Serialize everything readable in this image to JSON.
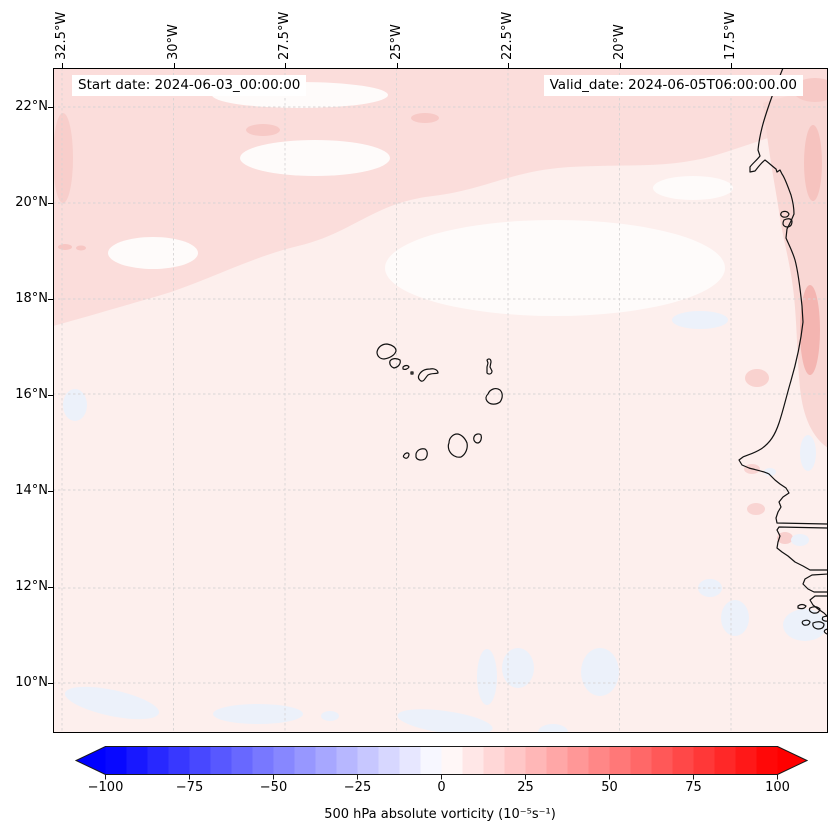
{
  "figure": {
    "map": {
      "start_date_label": "Start date: 2024-06-03_00:00:00",
      "valid_date_label": "Valid_date: 2024-06-05T06:00:00.00"
    },
    "axes": {
      "lon_ticks": [
        {
          "label": "32.5°W",
          "deg_w": 32.5
        },
        {
          "label": "30°W",
          "deg_w": 30
        },
        {
          "label": "27.5°W",
          "deg_w": 27.5
        },
        {
          "label": "25°W",
          "deg_w": 25
        },
        {
          "label": "22.5°W",
          "deg_w": 22.5
        },
        {
          "label": "20°W",
          "deg_w": 20
        },
        {
          "label": "17.5°W",
          "deg_w": 17.5
        }
      ],
      "lat_ticks": [
        {
          "label": "22°N",
          "deg_n": 22
        },
        {
          "label": "20°N",
          "deg_n": 20
        },
        {
          "label": "18°N",
          "deg_n": 18
        },
        {
          "label": "16°N",
          "deg_n": 16
        },
        {
          "label": "14°N",
          "deg_n": 14
        },
        {
          "label": "12°N",
          "deg_n": 12
        },
        {
          "label": "10°N",
          "deg_n": 10
        }
      ]
    },
    "colorbar": {
      "label": "500 hPa absolute vorticity (10⁻⁵s⁻¹)",
      "vmin": -100,
      "vmax": 100,
      "segments": 32,
      "under_color": "#0000ff",
      "over_color": "#ff0000",
      "ticks": [
        {
          "value": -100,
          "label": "−100"
        },
        {
          "value": -75,
          "label": "−75"
        },
        {
          "value": -50,
          "label": "−50"
        },
        {
          "value": -25,
          "label": "−25"
        },
        {
          "value": 0,
          "label": "0"
        },
        {
          "value": 25,
          "label": "25"
        },
        {
          "value": 50,
          "label": "50"
        },
        {
          "value": 75,
          "label": "75"
        },
        {
          "value": 100,
          "label": "100"
        }
      ]
    }
  },
  "chart_data": {
    "type": "heatmap",
    "variable": "500 hPa absolute vorticity",
    "units": "10⁻⁵ s⁻¹",
    "start_date": "2024-06-03_00:00:00",
    "valid_date": "2024-06-05T06:00:00.00",
    "colormap": "bwr (blue–white–red), 32 discrete filled-contour levels, colorbar extended with arrows on both ends",
    "value_range": [
      -100,
      100
    ],
    "colorbar_ticks": [
      -100,
      -75,
      -50,
      -25,
      0,
      25,
      50,
      75,
      100
    ],
    "x_axis": {
      "ticks": [
        "32.5°W",
        "30°W",
        "27.5°W",
        "25°W",
        "22.5°W",
        "20°W",
        "17.5°W"
      ],
      "position": "top",
      "tick_label_rotation": 90
    },
    "y_axis": {
      "ticks": [
        "22°N",
        "20°N",
        "18°N",
        "16°N",
        "14°N",
        "12°N",
        "10°N"
      ],
      "position": "left"
    },
    "grid": "dashed light-gray graticule every 2.5° longitude and 2° latitude",
    "region": "Eastern tropical North Atlantic: Cape Verde islands (center) and the West African coast from Mauritania through Senegal (Cap-Vert peninsula, Gambia river) to the Bijagós archipelago of Guinea-Bissau (lower right)",
    "field_summary": "Weak positive vorticity (≈ 0 to +15) over most of the domain (pale pink); a band of slightly stronger positive values (≈ +10 to +20) across the north of the domain (20–23°N); locally ≈ +20 to +30 hugging the Mauritanian/Saharan coast near 16–20°N; scattered small weakly negative patches (≈ −5, pale blue) south of 16°N and near the bottom of the map"
  }
}
